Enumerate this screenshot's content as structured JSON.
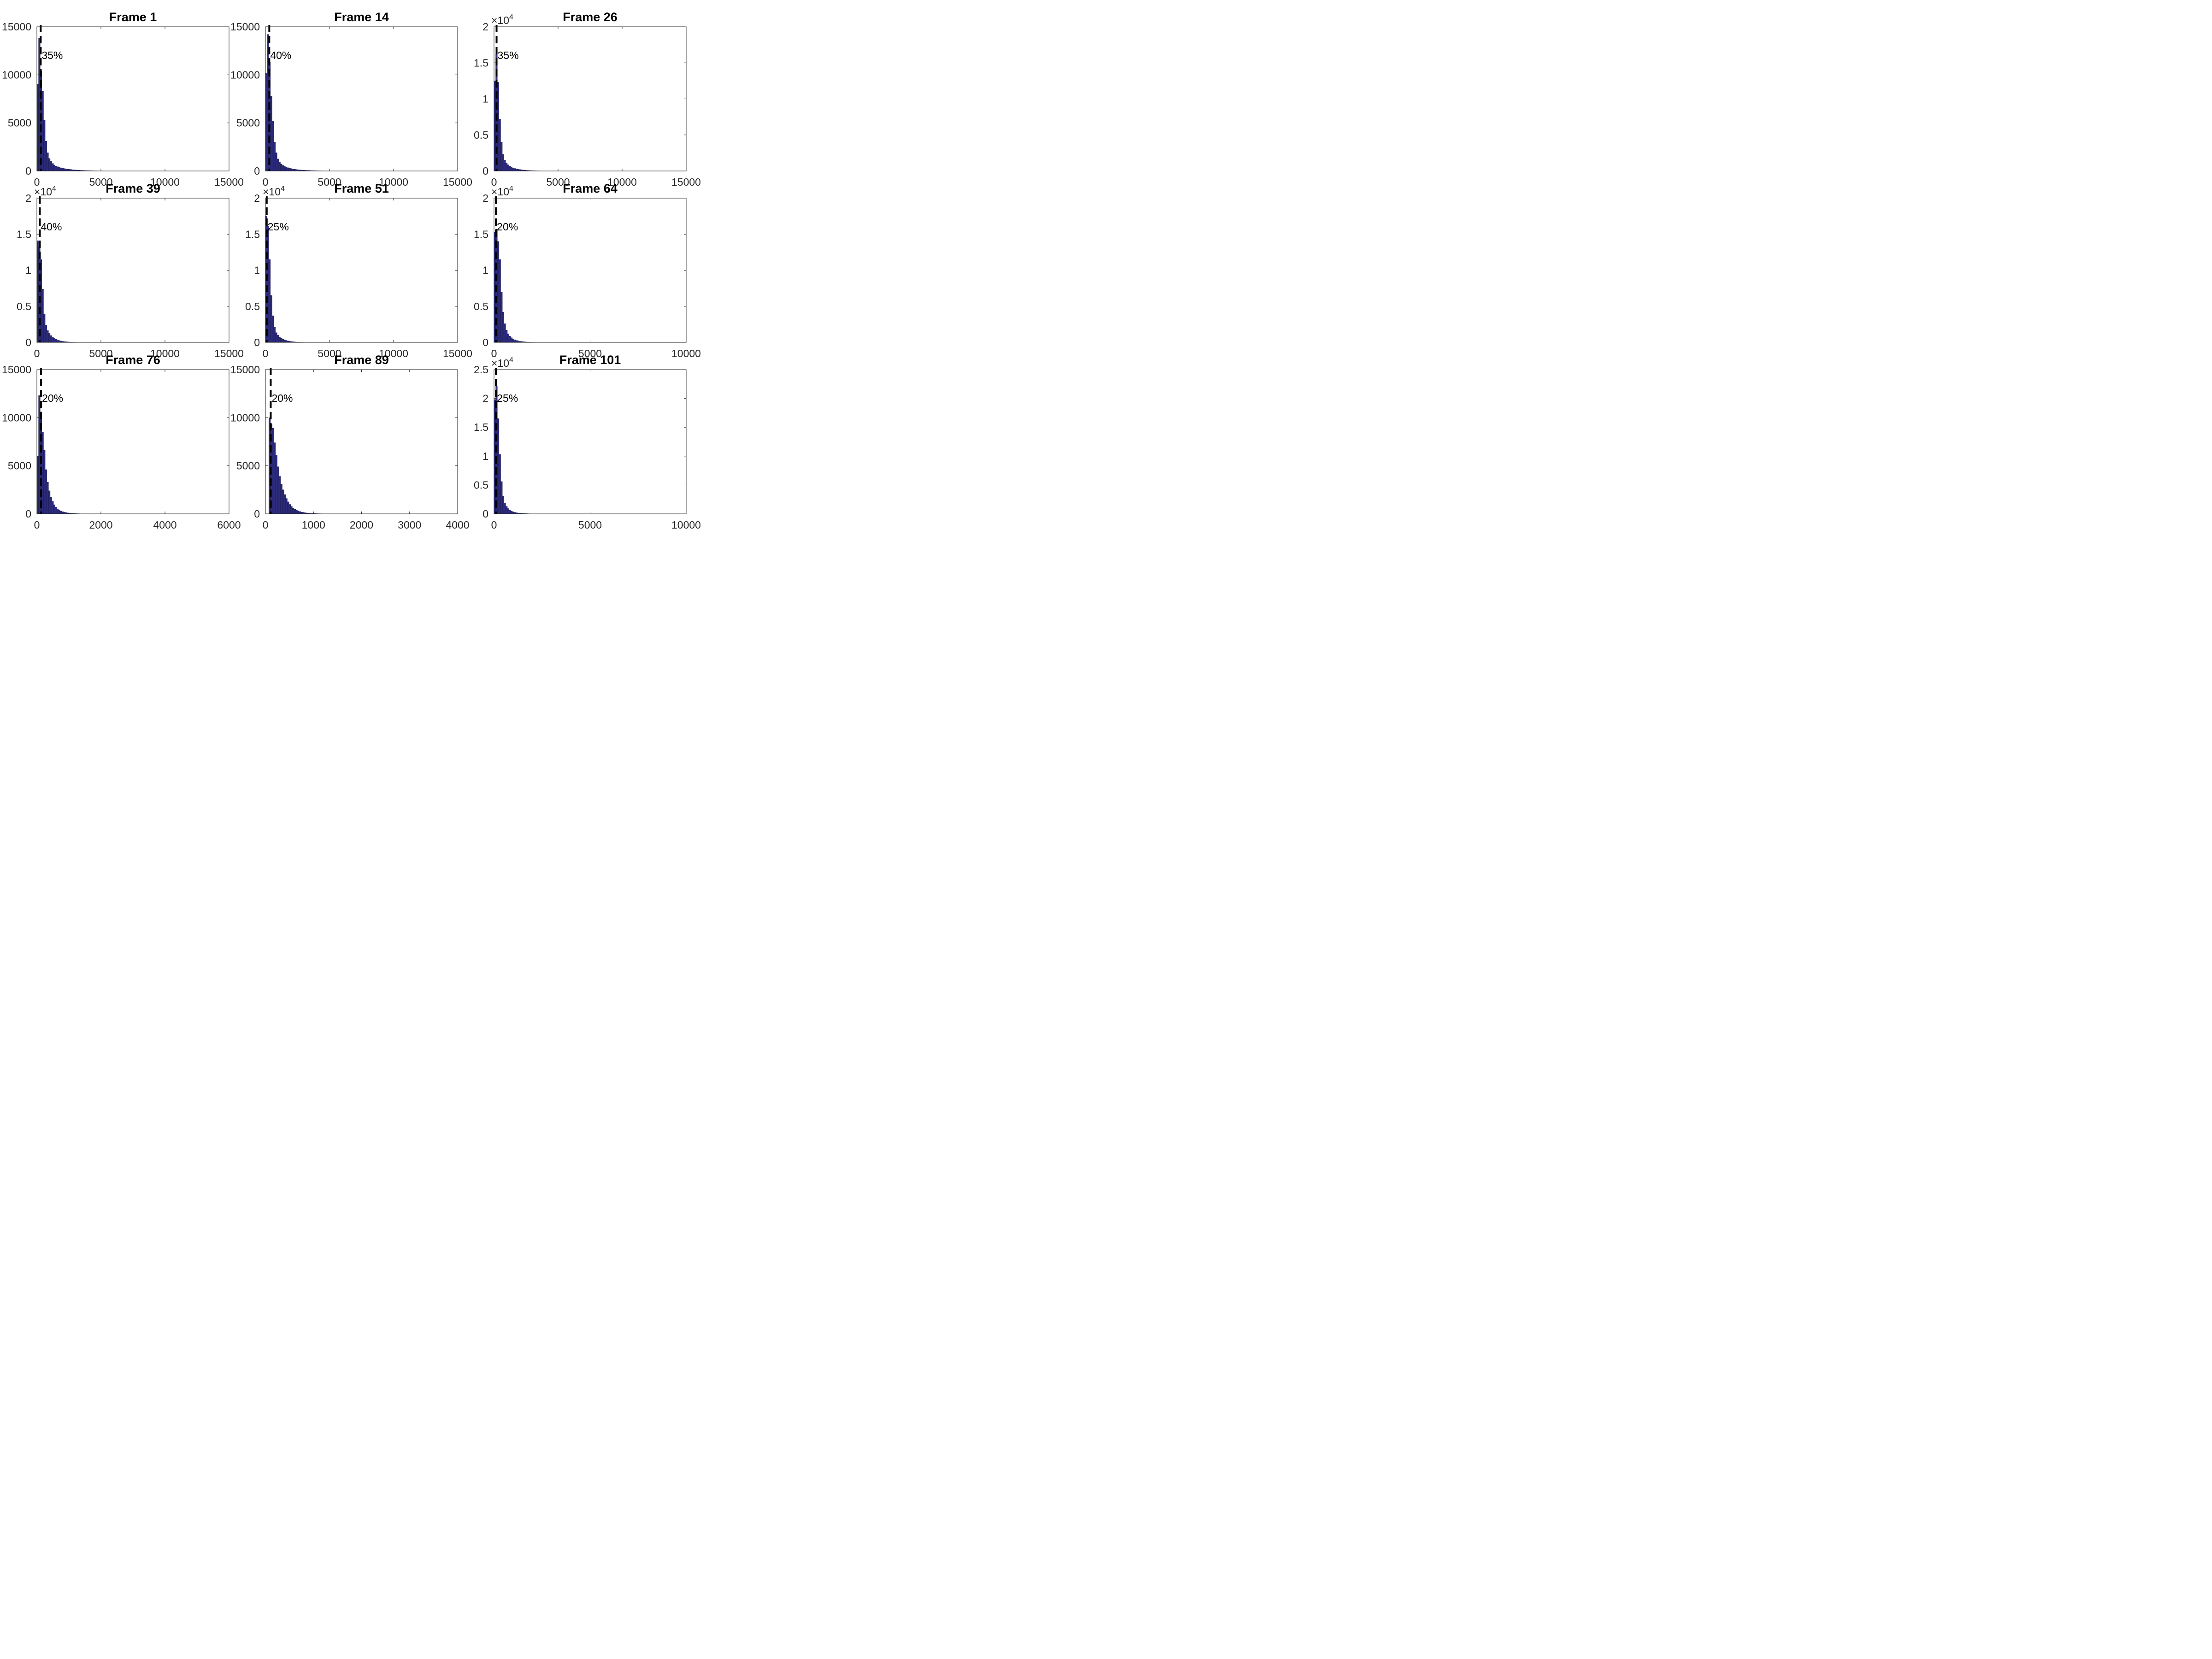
{
  "figure": {
    "rows": 3,
    "cols": 3,
    "bar_color": "#2b2a7c",
    "bar_edge": "#1a1946",
    "marker_color": "#000000"
  },
  "chart_data": [
    {
      "type": "bar",
      "title": "Frame 1",
      "percent_label": "35%",
      "xlim": [
        0,
        15000
      ],
      "ylim": [
        0,
        15000
      ],
      "exponent": null,
      "xticks": [
        {
          "v": 0,
          "t": "0"
        },
        {
          "v": 5000,
          "t": "5000"
        },
        {
          "v": 10000,
          "t": "10000"
        },
        {
          "v": 15000,
          "t": "15000"
        }
      ],
      "yticks": [
        {
          "v": 0,
          "t": "0"
        },
        {
          "v": 5000,
          "t": "5000"
        },
        {
          "v": 10000,
          "t": "10000"
        },
        {
          "v": 15000,
          "t": "15000"
        }
      ],
      "bin_width": 130,
      "marker_x": 300,
      "values": [
        9000,
        13800,
        10400,
        8300,
        5300,
        3100,
        1900,
        1300,
        1000,
        780,
        620,
        520,
        440,
        380,
        330,
        290,
        250,
        220,
        190,
        170,
        150,
        130,
        115,
        100,
        90,
        80,
        70,
        60,
        52,
        46,
        40,
        35,
        30,
        26,
        22,
        19,
        16,
        14,
        12,
        10,
        9,
        8,
        7,
        6,
        5,
        5,
        4,
        4,
        3,
        3,
        3,
        2,
        2,
        2,
        2,
        1,
        1,
        1,
        1,
        1,
        1,
        1,
        1,
        1,
        1,
        1,
        1,
        1,
        1,
        1,
        1,
        1,
        1,
        1,
        1,
        1,
        1,
        1,
        1,
        1,
        1,
        1,
        1,
        1,
        1,
        1,
        1,
        1,
        1,
        1,
        1,
        1,
        1,
        1,
        1,
        1,
        1,
        1,
        1,
        1,
        1,
        1,
        1,
        1,
        1,
        1,
        1,
        1,
        1,
        1,
        1,
        1,
        1,
        1,
        1
      ]
    },
    {
      "type": "bar",
      "title": "Frame 14",
      "percent_label": "40%",
      "xlim": [
        0,
        15000
      ],
      "ylim": [
        0,
        15000
      ],
      "exponent": null,
      "xticks": [
        {
          "v": 0,
          "t": "0"
        },
        {
          "v": 5000,
          "t": "5000"
        },
        {
          "v": 10000,
          "t": "10000"
        },
        {
          "v": 15000,
          "t": "15000"
        }
      ],
      "yticks": [
        {
          "v": 0,
          "t": "0"
        },
        {
          "v": 5000,
          "t": "5000"
        },
        {
          "v": 10000,
          "t": "10000"
        },
        {
          "v": 15000,
          "t": "15000"
        }
      ],
      "bin_width": 130,
      "marker_x": 300,
      "values": [
        10200,
        14200,
        11300,
        7800,
        5200,
        3000,
        1900,
        1250,
        920,
        720,
        580,
        480,
        400,
        340,
        290,
        250,
        210,
        180,
        155,
        135,
        115,
        100,
        88,
        76,
        66,
        58,
        50,
        43,
        37,
        32,
        28,
        24,
        21,
        18,
        15,
        13,
        11,
        10,
        9,
        8,
        7,
        6,
        5,
        4,
        4,
        3,
        3,
        3,
        2,
        2,
        2,
        2,
        1,
        1,
        1,
        1,
        1,
        1,
        1,
        1,
        1,
        1,
        1,
        1,
        1,
        1,
        1,
        1,
        1,
        1,
        1,
        1,
        1,
        1,
        1,
        1,
        1,
        1,
        1,
        1,
        1,
        1,
        1,
        1,
        1,
        1,
        1,
        1,
        1,
        1,
        1,
        1,
        1,
        1,
        1,
        1,
        1,
        1,
        1,
        1,
        1,
        1,
        1,
        1,
        1,
        1,
        1,
        1,
        1,
        1,
        1,
        1,
        1,
        1,
        1
      ]
    },
    {
      "type": "bar",
      "title": "Frame 26",
      "percent_label": "35%",
      "xlim": [
        0,
        15000
      ],
      "ylim": [
        0,
        20000
      ],
      "exponent": "4",
      "xticks": [
        {
          "v": 0,
          "t": "0"
        },
        {
          "v": 5000,
          "t": "5000"
        },
        {
          "v": 10000,
          "t": "10000"
        },
        {
          "v": 15000,
          "t": "15000"
        }
      ],
      "yticks": [
        {
          "v": 0,
          "t": "0"
        },
        {
          "v": 5000,
          "t": "0.5"
        },
        {
          "v": 10000,
          "t": "1"
        },
        {
          "v": 15000,
          "t": "1.5"
        },
        {
          "v": 20000,
          "t": "2"
        }
      ],
      "bin_width": 130,
      "marker_x": 200,
      "values": [
        12500,
        16200,
        12300,
        7200,
        4000,
        2300,
        1500,
        1100,
        860,
        680,
        540,
        430,
        350,
        290,
        240,
        200,
        165,
        135,
        110,
        90,
        74,
        60,
        50,
        41,
        34,
        28,
        23,
        19,
        16,
        13,
        11,
        9,
        8,
        7,
        6,
        5,
        4,
        4,
        3,
        3,
        2,
        2,
        2,
        2,
        1,
        1,
        1,
        1,
        1,
        1,
        1,
        1,
        1,
        1,
        1,
        1,
        1,
        1,
        1,
        1,
        1,
        1,
        1,
        1,
        1,
        1,
        1,
        1,
        1,
        1,
        1,
        1,
        1,
        1,
        1,
        1,
        1,
        1,
        1,
        1,
        1,
        1,
        1,
        1,
        1,
        1,
        1,
        1,
        1,
        1,
        1,
        1,
        1,
        1,
        1,
        1,
        1,
        1,
        1,
        1,
        1,
        1,
        1,
        1,
        1,
        1,
        1,
        1,
        1,
        1,
        1,
        1,
        1,
        1,
        1
      ]
    },
    {
      "type": "bar",
      "title": "Frame 39",
      "percent_label": "40%",
      "xlim": [
        0,
        15000
      ],
      "ylim": [
        0,
        20000
      ],
      "exponent": "4",
      "xticks": [
        {
          "v": 0,
          "t": "0"
        },
        {
          "v": 5000,
          "t": "5000"
        },
        {
          "v": 10000,
          "t": "10000"
        },
        {
          "v": 15000,
          "t": "15000"
        }
      ],
      "yticks": [
        {
          "v": 0,
          "t": "0"
        },
        {
          "v": 5000,
          "t": "0.5"
        },
        {
          "v": 10000,
          "t": "1"
        },
        {
          "v": 15000,
          "t": "1.5"
        },
        {
          "v": 20000,
          "t": "2"
        }
      ],
      "bin_width": 130,
      "marker_x": 230,
      "values": [
        14100,
        13200,
        11500,
        7400,
        3900,
        2400,
        1650,
        1250,
        950,
        730,
        570,
        440,
        340,
        260,
        200,
        155,
        120,
        95,
        75,
        60,
        48,
        38,
        30,
        24,
        19,
        15,
        12,
        10,
        8,
        7,
        6,
        5,
        4,
        3,
        3,
        2,
        2,
        2,
        1,
        1,
        1,
        1,
        1,
        1,
        1,
        1,
        1,
        1,
        1,
        1,
        1,
        1,
        1,
        1,
        1,
        1,
        1,
        1,
        1,
        1,
        1,
        1,
        1,
        1,
        1,
        1,
        1,
        1,
        1,
        1,
        1,
        1,
        1,
        1,
        1,
        1,
        1,
        1,
        1,
        1,
        1,
        1,
        1,
        1,
        1,
        1,
        1,
        1,
        1,
        1,
        1,
        1,
        1,
        1,
        1,
        1,
        1,
        1,
        1,
        1,
        1,
        1,
        1,
        1,
        1,
        1,
        1,
        1,
        1,
        1,
        1,
        1,
        1,
        1,
        1
      ]
    },
    {
      "type": "bar",
      "title": "Frame 51",
      "percent_label": "25%",
      "xlim": [
        0,
        15000
      ],
      "ylim": [
        0,
        20000
      ],
      "exponent": "4",
      "xticks": [
        {
          "v": 0,
          "t": "0"
        },
        {
          "v": 5000,
          "t": "5000"
        },
        {
          "v": 10000,
          "t": "10000"
        },
        {
          "v": 15000,
          "t": "15000"
        }
      ],
      "yticks": [
        {
          "v": 0,
          "t": "0"
        },
        {
          "v": 5000,
          "t": "0.5"
        },
        {
          "v": 10000,
          "t": "1"
        },
        {
          "v": 15000,
          "t": "1.5"
        },
        {
          "v": 20000,
          "t": "2"
        }
      ],
      "bin_width": 130,
      "marker_x": 100,
      "values": [
        17500,
        16100,
        11500,
        6500,
        3700,
        2100,
        1350,
        1000,
        760,
        590,
        460,
        360,
        280,
        215,
        165,
        128,
        100,
        78,
        60,
        47,
        37,
        29,
        23,
        18,
        14,
        11,
        9,
        7,
        6,
        5,
        4,
        3,
        3,
        2,
        2,
        2,
        1,
        1,
        1,
        1,
        1,
        1,
        1,
        1,
        1,
        1,
        1,
        1,
        1,
        1,
        1,
        1,
        1,
        1,
        1,
        1,
        1,
        1,
        1,
        1,
        1,
        1,
        1,
        1,
        1,
        1,
        1,
        1,
        1,
        1,
        1,
        1,
        1,
        1,
        1,
        1,
        1,
        1,
        1,
        1,
        1,
        1,
        1,
        1,
        1,
        1,
        1,
        1,
        1,
        1,
        1,
        1,
        1,
        1,
        1,
        1,
        1,
        1,
        1,
        1,
        1,
        1,
        1,
        1,
        1,
        1,
        1,
        1,
        1,
        1,
        1,
        1,
        1,
        1,
        1
      ]
    },
    {
      "type": "bar",
      "title": "Frame 64",
      "percent_label": "20%",
      "xlim": [
        0,
        10000
      ],
      "ylim": [
        0,
        20000
      ],
      "exponent": "4",
      "xticks": [
        {
          "v": 0,
          "t": "0"
        },
        {
          "v": 5000,
          "t": "5000"
        },
        {
          "v": 10000,
          "t": "10000"
        }
      ],
      "yticks": [
        {
          "v": 0,
          "t": "0"
        },
        {
          "v": 5000,
          "t": "0.5"
        },
        {
          "v": 10000,
          "t": "1"
        },
        {
          "v": 15000,
          "t": "1.5"
        },
        {
          "v": 20000,
          "t": "2"
        }
      ],
      "bin_width": 87,
      "marker_x": 100,
      "values": [
        15300,
        15700,
        14000,
        11500,
        7000,
        4200,
        2600,
        1700,
        1200,
        880,
        650,
        480,
        360,
        270,
        205,
        160,
        125,
        98,
        78,
        62,
        50,
        40,
        32,
        26,
        21,
        17,
        14,
        11,
        9,
        7,
        6,
        5,
        4,
        4,
        3,
        3,
        2,
        2,
        2,
        1,
        1,
        1,
        1,
        1,
        1,
        1,
        1,
        1,
        1,
        1,
        1,
        1,
        1,
        1,
        1,
        1,
        1,
        1,
        1,
        1,
        1,
        1,
        1,
        1,
        1,
        1,
        1,
        1,
        1,
        1,
        1,
        1,
        1,
        1,
        1,
        1,
        1,
        1,
        1,
        1,
        1,
        1,
        1,
        1,
        1,
        1,
        1,
        1,
        1,
        1,
        1,
        1,
        1,
        1,
        1,
        1,
        1,
        1,
        1,
        1,
        1,
        1,
        1,
        1,
        1,
        1,
        1,
        1,
        1,
        1,
        1,
        1,
        1,
        1,
        1
      ]
    },
    {
      "type": "bar",
      "title": "Frame 76",
      "percent_label": "20%",
      "xlim": [
        0,
        6000
      ],
      "ylim": [
        0,
        15000
      ],
      "exponent": null,
      "xticks": [
        {
          "v": 0,
          "t": "0"
        },
        {
          "v": 2000,
          "t": "2000"
        },
        {
          "v": 4000,
          "t": "4000"
        },
        {
          "v": 6000,
          "t": "6000"
        }
      ],
      "yticks": [
        {
          "v": 0,
          "t": "0"
        },
        {
          "v": 5000,
          "t": "5000"
        },
        {
          "v": 10000,
          "t": "10000"
        },
        {
          "v": 15000,
          "t": "15000"
        }
      ],
      "bin_width": 52,
      "marker_x": 130,
      "values": [
        6000,
        12300,
        10600,
        8500,
        6600,
        4600,
        3300,
        2400,
        1750,
        1300,
        950,
        700,
        520,
        390,
        290,
        220,
        170,
        130,
        100,
        78,
        60,
        46,
        36,
        28,
        22,
        17,
        13,
        10,
        8,
        6,
        5,
        4,
        3,
        3,
        2,
        2,
        2,
        1,
        1,
        1,
        1,
        1,
        1,
        1,
        1,
        1,
        1,
        1,
        1,
        1,
        1,
        1,
        1,
        1,
        1,
        1,
        1,
        1,
        1,
        1,
        1,
        1,
        1,
        1,
        1,
        1,
        1,
        1,
        1,
        1,
        1,
        1,
        1,
        1,
        1,
        1,
        1,
        1,
        1,
        1,
        1,
        1,
        1,
        1,
        1,
        1,
        1,
        1,
        1,
        1,
        1,
        1,
        1,
        1,
        1,
        1,
        1,
        1,
        1,
        1,
        1,
        1,
        1,
        1,
        1,
        1,
        1,
        1,
        1,
        1,
        1,
        1,
        1,
        1,
        1
      ]
    },
    {
      "type": "bar",
      "title": "Frame 89",
      "percent_label": "20%",
      "xlim": [
        0,
        4000
      ],
      "ylim": [
        0,
        15000
      ],
      "exponent": null,
      "xticks": [
        {
          "v": 0,
          "t": "0"
        },
        {
          "v": 1000,
          "t": "1000"
        },
        {
          "v": 2000,
          "t": "2000"
        },
        {
          "v": 3000,
          "t": "3000"
        },
        {
          "v": 4000,
          "t": "4000"
        }
      ],
      "yticks": [
        {
          "v": 0,
          "t": "0"
        },
        {
          "v": 5000,
          "t": "5000"
        },
        {
          "v": 10000,
          "t": "10000"
        },
        {
          "v": 15000,
          "t": "15000"
        }
      ],
      "bin_width": 35,
      "marker_x": 110,
      "values": [
        0,
        0,
        10000,
        9300,
        8900,
        7400,
        6100,
        4900,
        3900,
        3100,
        2500,
        2000,
        1600,
        1250,
        980,
        770,
        610,
        480,
        380,
        300,
        240,
        190,
        150,
        120,
        96,
        77,
        62,
        50,
        40,
        32,
        26,
        21,
        17,
        14,
        11,
        9,
        7,
        6,
        5,
        4,
        4,
        3,
        3,
        2,
        2,
        2,
        1,
        1,
        1,
        1,
        1,
        1,
        1,
        1,
        1,
        1,
        1,
        1,
        1,
        1,
        1,
        1,
        1,
        1,
        1,
        1,
        1,
        1,
        1,
        1,
        1,
        1,
        1,
        1,
        1,
        1,
        1,
        1,
        1,
        1,
        1,
        1,
        1,
        1,
        1,
        1,
        1,
        1,
        1,
        1,
        1,
        1,
        1,
        1,
        1,
        1,
        1,
        1,
        1,
        1,
        1,
        1,
        1,
        1,
        1,
        1,
        1,
        1,
        1,
        1,
        1,
        1,
        1,
        1
      ]
    },
    {
      "type": "bar",
      "title": "Frame 101",
      "percent_label": "25%",
      "xlim": [
        0,
        10000
      ],
      "ylim": [
        0,
        25000
      ],
      "exponent": "4",
      "xticks": [
        {
          "v": 0,
          "t": "0"
        },
        {
          "v": 5000,
          "t": "5000"
        },
        {
          "v": 10000,
          "t": "10000"
        }
      ],
      "yticks": [
        {
          "v": 0,
          "t": "0"
        },
        {
          "v": 5000,
          "t": "0.5"
        },
        {
          "v": 10000,
          "t": "1"
        },
        {
          "v": 15000,
          "t": "1.5"
        },
        {
          "v": 20000,
          "t": "2"
        },
        {
          "v": 25000,
          "t": "2.5"
        }
      ],
      "bin_width": 87,
      "marker_x": 100,
      "values": [
        19800,
        22100,
        16500,
        10300,
        5600,
        3100,
        1900,
        1300,
        920,
        660,
        480,
        350,
        260,
        195,
        148,
        112,
        85,
        65,
        50,
        38,
        29,
        22,
        17,
        13,
        10,
        8,
        6,
        5,
        4,
        3,
        3,
        2,
        2,
        2,
        1,
        1,
        1,
        1,
        1,
        1,
        1,
        1,
        1,
        1,
        1,
        1,
        1,
        1,
        1,
        1,
        1,
        1,
        1,
        1,
        1,
        1,
        1,
        1,
        1,
        1,
        1,
        1,
        1,
        1,
        1,
        1,
        1,
        1,
        1,
        1,
        1,
        1,
        1,
        1,
        1,
        1,
        1,
        1,
        1,
        1,
        1,
        1,
        1,
        1,
        1,
        1,
        1,
        1,
        1,
        1,
        1,
        1,
        1,
        1,
        1,
        1,
        1,
        1,
        1,
        1,
        1,
        1,
        1,
        1,
        1,
        1,
        1,
        1,
        1,
        1,
        1,
        1,
        1,
        1,
        1
      ]
    }
  ]
}
